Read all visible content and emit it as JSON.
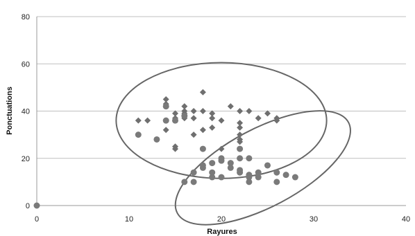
{
  "chart_data": {
    "type": "scatter",
    "xlabel": "Rayures",
    "ylabel": "Ponctuations",
    "xlim": [
      0,
      40
    ],
    "ylim": [
      0,
      80
    ],
    "xticks": [
      0,
      10,
      20,
      30,
      40
    ],
    "yticks": [
      0,
      20,
      40,
      60,
      80
    ],
    "grid": "horizontal",
    "colors": {
      "diamonds": "#6f6f6f",
      "circles": "#7a7a7a",
      "gridline": "#bfbfbf",
      "ellipse": "#666666"
    },
    "series": [
      {
        "marker": "diamond",
        "points": [
          [
            0,
            0
          ],
          [
            11,
            36
          ],
          [
            12,
            36
          ],
          [
            14,
            45
          ],
          [
            14,
            43
          ],
          [
            14,
            36
          ],
          [
            14,
            32
          ],
          [
            15,
            39
          ],
          [
            15,
            37
          ],
          [
            15,
            25
          ],
          [
            15,
            24
          ],
          [
            16,
            42
          ],
          [
            16,
            40
          ],
          [
            16,
            39
          ],
          [
            16,
            37
          ],
          [
            17,
            40
          ],
          [
            17,
            37
          ],
          [
            17,
            30
          ],
          [
            18,
            48
          ],
          [
            18,
            40
          ],
          [
            18,
            32
          ],
          [
            19,
            39
          ],
          [
            19,
            37
          ],
          [
            19,
            33
          ],
          [
            20,
            36
          ],
          [
            20,
            24
          ],
          [
            21,
            42
          ],
          [
            21,
            18
          ],
          [
            22,
            40
          ],
          [
            22,
            35
          ],
          [
            22,
            33
          ],
          [
            22,
            30
          ],
          [
            22,
            28
          ],
          [
            22,
            27
          ],
          [
            23,
            40
          ],
          [
            24,
            37
          ],
          [
            25,
            39
          ],
          [
            26,
            37
          ],
          [
            26,
            36
          ]
        ]
      },
      {
        "marker": "circle",
        "points": [
          [
            0,
            0
          ],
          [
            11,
            30
          ],
          [
            13,
            28
          ],
          [
            14,
            42
          ],
          [
            14,
            36
          ],
          [
            15,
            36
          ],
          [
            16,
            10
          ],
          [
            16,
            38
          ],
          [
            17,
            14
          ],
          [
            17,
            10
          ],
          [
            18,
            24
          ],
          [
            18,
            17
          ],
          [
            18,
            16
          ],
          [
            19,
            18
          ],
          [
            19,
            14
          ],
          [
            19,
            12
          ],
          [
            20,
            20
          ],
          [
            20,
            19
          ],
          [
            20,
            12
          ],
          [
            21,
            18
          ],
          [
            21,
            16
          ],
          [
            22,
            24
          ],
          [
            22,
            20
          ],
          [
            22,
            15
          ],
          [
            22,
            14
          ],
          [
            23,
            20
          ],
          [
            23,
            13
          ],
          [
            23,
            12
          ],
          [
            23,
            10
          ],
          [
            24,
            14
          ],
          [
            24,
            12
          ],
          [
            25,
            17
          ],
          [
            26,
            14
          ],
          [
            26,
            10
          ],
          [
            27,
            13
          ],
          [
            28,
            12
          ]
        ]
      }
    ],
    "ellipses": [
      {
        "cx": 20,
        "cy": 36,
        "rx": 11.4,
        "ry": 24.5,
        "rotate": 0
      },
      {
        "cx": 24.5,
        "cy": 16,
        "rx": 10.5,
        "ry": 16.5,
        "rotate": 28
      }
    ]
  }
}
